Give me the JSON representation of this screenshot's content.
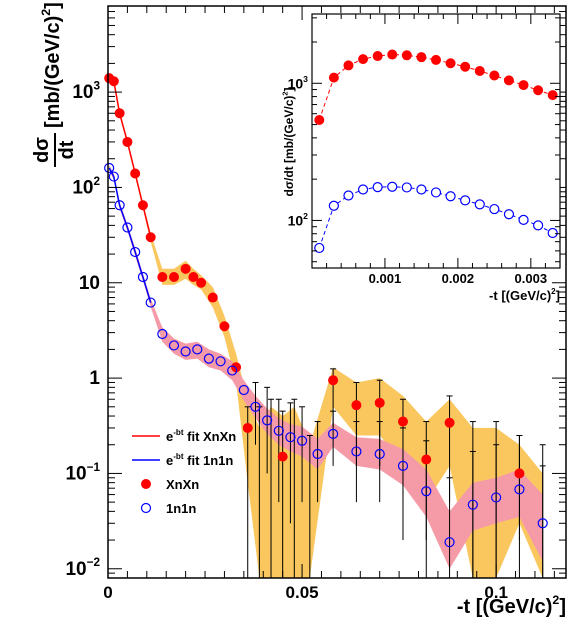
{
  "chart_data": [
    {
      "type": "scatter",
      "ylabel_num": "dσ",
      "ylabel_den": "dt",
      "ylabel_unit": "[mb/(GeV/c)",
      "ylabel_unit_exp": "2",
      "ylabel_unit_close": "]",
      "xlabel": "-t [(GeV/c)",
      "xlabel_exp": "2",
      "xlabel_close": "]",
      "xlim": [
        0,
        0.118
      ],
      "ylim": [
        0.008,
        8000
      ],
      "yscale": "log",
      "xticks": [
        {
          "value": 0,
          "label": "0"
        },
        {
          "value": 0.05,
          "label": "0.05"
        },
        {
          "value": 0.1,
          "label": "0.1"
        }
      ],
      "yticks": [
        {
          "value": 0.01,
          "base": "10",
          "exp": "−2"
        },
        {
          "value": 0.1,
          "base": "10",
          "exp": "−1"
        },
        {
          "value": 1,
          "base": "1",
          "exp": ""
        },
        {
          "value": 10,
          "base": "10",
          "exp": ""
        },
        {
          "value": 100,
          "base": "10",
          "exp": "2"
        },
        {
          "value": 1000,
          "base": "10",
          "exp": "3"
        }
      ],
      "legend_position": "bottom-left",
      "legend": [
        {
          "kind": "line",
          "color": "#ff0000",
          "pre": "e",
          "sup": "-bt",
          "post": " fit XnXn"
        },
        {
          "kind": "line",
          "color": "#0000ff",
          "pre": "e",
          "sup": "-bt",
          "post": " fit 1n1n"
        },
        {
          "kind": "filled",
          "color": "#ff0000",
          "pre": "XnXn",
          "sup": "",
          "post": ""
        },
        {
          "kind": "open",
          "color": "#0000ff",
          "pre": "1n1n",
          "sup": "",
          "post": ""
        }
      ],
      "series": [
        {
          "name": "XnXn",
          "marker": "filled-circle",
          "color": "#ff0000",
          "band_color": "#f9c75e",
          "fit_color": "#ff0000",
          "x": [
            0.0003,
            0.0015,
            0.003,
            0.005,
            0.007,
            0.009,
            0.011,
            0.014,
            0.017,
            0.02,
            0.022,
            0.024,
            0.027,
            0.03,
            0.033,
            0.036,
            0.039,
            0.042,
            0.045,
            0.048,
            0.052,
            0.058,
            0.064,
            0.07,
            0.076,
            0.082,
            0.088,
            0.094,
            0.1,
            0.106,
            0.112
          ],
          "y": [
            1400,
            1300,
            600,
            300,
            140,
            65,
            30,
            11.5,
            11.5,
            14,
            11.5,
            10,
            7,
            3.5,
            1.3,
            0.3,
            0.005,
            0.005,
            0.15,
            0.005,
            0.005,
            0.95,
            0.52,
            0.55,
            0.35,
            0.14,
            0.34,
            0.005,
            0.005,
            0.1,
            0.005
          ],
          "band_low": [
            1300,
            1200,
            560,
            280,
            130,
            60,
            27,
            9.5,
            9.5,
            11,
            9.5,
            8.5,
            5.5,
            2.7,
            0.9,
            0.08,
            0.005,
            0.005,
            0.005,
            0.005,
            0.005,
            0.5,
            0.25,
            0.25,
            0.13,
            0.05,
            0.12,
            0.005,
            0.005,
            0.03,
            0.005
          ],
          "band_high": [
            1500,
            1400,
            640,
            320,
            150,
            70,
            33,
            14,
            14,
            17,
            14,
            12,
            9,
            4.5,
            1.8,
            0.6,
            0.3,
            0.5,
            0.4,
            0.5,
            0.2,
            1.3,
            0.9,
            1.0,
            0.65,
            0.35,
            0.6,
            0.3,
            0.3,
            0.2,
            0.1
          ]
        },
        {
          "name": "1n1n",
          "marker": "open-circle",
          "color": "#0000ff",
          "band_color": "#f59aa7",
          "fit_color": "#0000ff",
          "x": [
            0.0003,
            0.0015,
            0.003,
            0.005,
            0.007,
            0.009,
            0.011,
            0.014,
            0.017,
            0.02,
            0.023,
            0.026,
            0.029,
            0.032,
            0.035,
            0.038,
            0.041,
            0.044,
            0.047,
            0.05,
            0.054,
            0.058,
            0.064,
            0.07,
            0.076,
            0.082,
            0.088,
            0.094,
            0.1,
            0.106,
            0.112
          ],
          "y": [
            160,
            130,
            65,
            38,
            21,
            11.5,
            6.2,
            2.9,
            2.2,
            1.9,
            2.0,
            1.6,
            1.5,
            1.2,
            0.75,
            0.5,
            0.36,
            0.28,
            0.24,
            0.22,
            0.16,
            0.26,
            0.17,
            0.16,
            0.12,
            0.065,
            0.019,
            0.047,
            0.056,
            0.068,
            0.03
          ],
          "band_low": [
            150,
            120,
            60,
            35,
            19,
            10.5,
            5.6,
            2.4,
            1.8,
            1.55,
            1.6,
            1.3,
            1.2,
            0.95,
            0.58,
            0.38,
            0.26,
            0.2,
            0.17,
            0.15,
            0.11,
            0.19,
            0.12,
            0.11,
            0.075,
            0.035,
            0.01,
            0.025,
            0.03,
            0.035,
            0.012
          ],
          "band_high": [
            170,
            140,
            70,
            41,
            23,
            12.5,
            6.8,
            3.4,
            2.6,
            2.3,
            2.4,
            2.0,
            1.8,
            1.5,
            0.95,
            0.65,
            0.48,
            0.38,
            0.33,
            0.31,
            0.23,
            0.34,
            0.24,
            0.23,
            0.18,
            0.11,
            0.04,
            0.08,
            0.09,
            0.11,
            0.06
          ]
        }
      ],
      "error_bars": [
        {
          "series": "XnXn",
          "x": [
            0.036,
            0.039,
            0.042,
            0.045,
            0.048,
            0.052,
            0.058,
            0.064,
            0.07,
            0.076,
            0.082,
            0.088,
            0.094,
            0.1,
            0.106,
            0.112
          ],
          "low": [
            0.008,
            0.008,
            0.008,
            0.008,
            0.008,
            0.008,
            0.3,
            0.12,
            0.12,
            0.05,
            0.02,
            0.05,
            0.008,
            0.008,
            0.02,
            0.008
          ],
          "high": [
            0.5,
            0.5,
            0.6,
            0.45,
            0.6,
            0.25,
            1.25,
            0.9,
            0.95,
            0.6,
            0.35,
            0.65,
            0.35,
            0.35,
            0.25,
            0.2
          ]
        },
        {
          "series": "1n1n",
          "x": [
            0.038,
            0.041,
            0.044,
            0.047,
            0.05,
            0.054,
            0.058,
            0.064,
            0.07,
            0.076,
            0.082,
            0.088,
            0.094,
            0.1,
            0.106,
            0.112
          ],
          "low": [
            0.2,
            0.1,
            0.05,
            0.03,
            0.05,
            0.05,
            0.12,
            0.05,
            0.05,
            0.02,
            0.008,
            0.008,
            0.008,
            0.008,
            0.008,
            0.008
          ],
          "high": [
            0.9,
            0.8,
            0.6,
            0.55,
            0.5,
            0.35,
            0.45,
            0.35,
            0.35,
            0.3,
            0.22,
            0.09,
            0.17,
            0.2,
            0.25,
            0.12
          ]
        }
      ]
    },
    {
      "type": "scatter",
      "role": "inset",
      "ylabel": "dσ/dt [mb/(GeV/c)",
      "ylabel_exp": "2",
      "ylabel_close": "]",
      "xlabel": "-t [(GeV/c)",
      "xlabel_exp": "2",
      "xlabel_close": "]",
      "xlim": [
        0,
        0.0034
      ],
      "ylim": [
        45,
        3200
      ],
      "yscale": "log",
      "xticks": [
        {
          "value": 0.001,
          "label": "0.001"
        },
        {
          "value": 0.002,
          "label": "0.002"
        },
        {
          "value": 0.003,
          "label": "0.003"
        }
      ],
      "yticks": [
        {
          "value": 100,
          "base": "10",
          "exp": "2"
        },
        {
          "value": 1000,
          "base": "10",
          "exp": "3"
        }
      ],
      "series": [
        {
          "name": "XnXn",
          "marker": "filled-circle",
          "color": "#ff0000",
          "fit_color": "#ff0000",
          "x": [
            0.0001,
            0.0003,
            0.0005,
            0.0007,
            0.0009,
            0.0011,
            0.0013,
            0.0015,
            0.0017,
            0.0019,
            0.0021,
            0.0023,
            0.0025,
            0.0027,
            0.0029,
            0.0031,
            0.0033
          ],
          "y": [
            540,
            1100,
            1350,
            1500,
            1580,
            1620,
            1600,
            1550,
            1480,
            1400,
            1320,
            1230,
            1140,
            1050,
            970,
            890,
            820
          ]
        },
        {
          "name": "1n1n",
          "marker": "open-circle",
          "color": "#0000ff",
          "fit_color": "#0000ff",
          "x": [
            0.0001,
            0.0003,
            0.0005,
            0.0007,
            0.0009,
            0.0011,
            0.0013,
            0.0015,
            0.0017,
            0.0019,
            0.0021,
            0.0023,
            0.0025,
            0.0027,
            0.0029,
            0.0031,
            0.0033
          ],
          "y": [
            63,
            128,
            152,
            168,
            175,
            176,
            174,
            168,
            160,
            150,
            140,
            131,
            121,
            111,
            101,
            92,
            81
          ]
        }
      ]
    }
  ]
}
